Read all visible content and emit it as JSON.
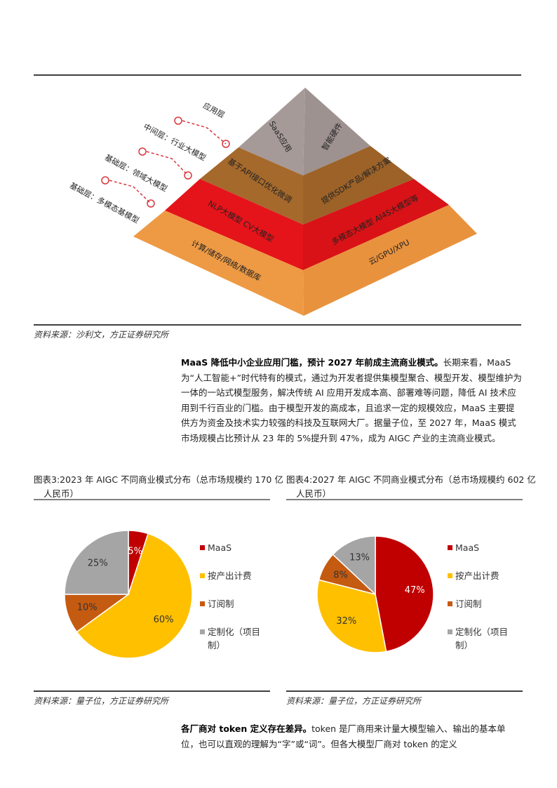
{
  "pyramid": {
    "side_labels": [
      "应用层",
      "中间层：行业大模型",
      "基础层：领域大模型",
      "基础层：多模态基模型"
    ],
    "layers": [
      {
        "left": "SaaS应用",
        "right": "智能硬件"
      },
      {
        "left": "基于API接口优化微调",
        "right": "提供SDK产品/解决方案"
      },
      {
        "left": "NLP大模型   CV大模型",
        "right": "多模态大模型   AI4S大模型等"
      },
      {
        "left": "计算/储存/网络/数据库",
        "right": "云/GPU/XPU"
      }
    ]
  },
  "figure_source": "资料来源：沙利文，方正证券研究所",
  "paragraph1": {
    "lead": "MaaS 降低中小企业应用门槛，预计 2027 年前成主流商业模式。",
    "body": "长期来看，MaaS 为“人工智能+”时代特有的模式，通过为开发者提供集模型聚合、模型开发、模型维护为一体的一站式模型服务，解决传统 AI 应用开发成本高、部署难等问题，降低 AI 技术应用到千行百业的门槛。由于模型开发的高成本，且追求一定的规模效应，MaaS 主要提供方为资金及技术实力较强的科技及互联网大厂。据量子位，至 2027 年，MaaS 模式市场规模占比预计从 23 年的 5%提升到 47%，成为 AIGC 产业的主流商业模式。"
  },
  "chart_data": [
    {
      "type": "pie",
      "title": "图表3:2023 年 AIGC 不同商业模式分布（总市场规模约 170 亿人民币）",
      "categories": [
        "MaaS",
        "按产出计费",
        "订阅制",
        "定制化（项目制）"
      ],
      "values": [
        5,
        60,
        10,
        25
      ],
      "value_labels": [
        "5%",
        "60%",
        "10%",
        "25%"
      ],
      "colors": [
        "#c00000",
        "#ffc000",
        "#c55a11",
        "#a5a5a5"
      ],
      "source": "资料来源：量子位，方正证券研究所"
    },
    {
      "type": "pie",
      "title": "图表4:2027 年 AIGC 不同商业模式分布（总市场规模约 602 亿人民币）",
      "categories": [
        "MaaS",
        "按产出计费",
        "订阅制",
        "定制化（项目制）"
      ],
      "values": [
        47,
        32,
        8,
        13
      ],
      "value_labels": [
        "47%",
        "32%",
        "8%",
        "13%"
      ],
      "colors": [
        "#c00000",
        "#ffc000",
        "#c55a11",
        "#a5a5a5"
      ],
      "source": "资料来源：量子位，方正证券研究所"
    }
  ],
  "paragraph2": {
    "lead": "各厂商对 token 定义存在差异。",
    "body": "token 是厂商用来计量大模型输入、输出的基本单位，也可以直观的理解为“字”或“词”。但各大模型厂商对 token 的定义"
  }
}
